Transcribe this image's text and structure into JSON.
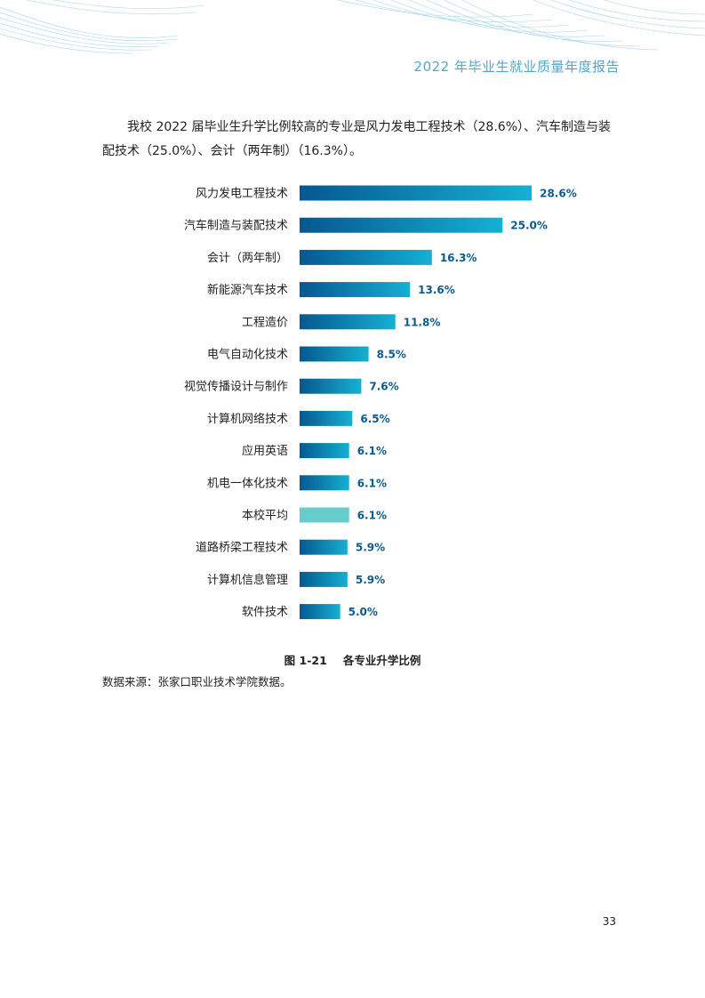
{
  "header": {
    "title": "2022 年毕业生就业质量年度报告"
  },
  "body": {
    "paragraph": "我校 2022 届毕业生升学比例较高的专业是风力发电工程技术（28.6%）、汽车制造与装配技术（25.0%）、会计（两年制）（16.3%）。"
  },
  "chart_data": {
    "type": "bar",
    "orientation": "horizontal",
    "categories": [
      "风力发电工程技术",
      "汽车制造与装配技术",
      "会计（两年制）",
      "新能源汽车技术",
      "工程造价",
      "电气自动化技术",
      "视觉传播设计与制作",
      "计算机网络技术",
      "应用英语",
      "机电一体化技术",
      "本校平均",
      "道路桥梁工程技术",
      "计算机信息管理",
      "软件技术"
    ],
    "values": [
      28.6,
      25.0,
      16.3,
      13.6,
      11.8,
      8.5,
      7.6,
      6.5,
      6.1,
      6.1,
      6.1,
      5.9,
      5.9,
      5.0
    ],
    "value_labels": [
      "28.6%",
      "25.0%",
      "16.3%",
      "13.6%",
      "11.8%",
      "8.5%",
      "7.6%",
      "6.5%",
      "6.1%",
      "6.1%",
      "6.1%",
      "5.9%",
      "5.9%",
      "5.0%"
    ],
    "highlight_category": "本校平均",
    "unit": "%",
    "colors": {
      "bar_start": "#05588f",
      "bar_end": "#16b0d2",
      "average": "#66cccc",
      "label": "#0d5a8c"
    },
    "grid": false,
    "legend": "none"
  },
  "figure": {
    "number": "图 1-21",
    "caption": "各专业升学比例"
  },
  "source": {
    "text": "数据来源：张家口职业技术学院数据。"
  },
  "footer": {
    "page_number": "33"
  }
}
